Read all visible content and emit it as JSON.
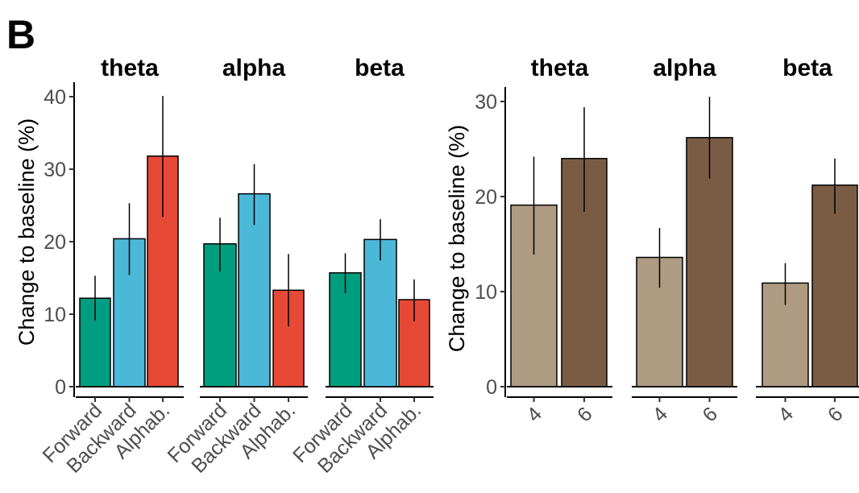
{
  "panel_label": "B",
  "chart_data": [
    {
      "type": "bar",
      "ylabel": "Change to baseline (%)",
      "ylim": [
        0,
        40
      ],
      "yticks": [
        0,
        10,
        20,
        30,
        40
      ],
      "categories": [
        "Forward",
        "Backward",
        "Alphab."
      ],
      "colors": [
        "#009E80",
        "#4CB8D8",
        "#E64A36"
      ],
      "facets": [
        {
          "title": "theta",
          "values": [
            12.2,
            20.4,
            31.8
          ],
          "error_low": [
            9.1,
            15.4,
            23.4
          ],
          "error_high": [
            15.3,
            25.3,
            40.1
          ]
        },
        {
          "title": "alpha",
          "values": [
            19.7,
            26.6,
            13.3
          ],
          "error_low": [
            15.9,
            22.3,
            8.3
          ],
          "error_high": [
            23.3,
            30.7,
            18.3
          ]
        },
        {
          "title": "beta",
          "values": [
            15.7,
            20.3,
            12.0
          ],
          "error_low": [
            12.9,
            17.4,
            9.0
          ],
          "error_high": [
            18.4,
            23.1,
            14.8
          ]
        }
      ],
      "grid": false,
      "legend": "none"
    },
    {
      "type": "bar",
      "ylabel": "Change to baseline (%)",
      "ylim": [
        0,
        30
      ],
      "yticks": [
        0,
        10,
        20,
        30
      ],
      "categories": [
        "4",
        "6"
      ],
      "colors": [
        "#AE9B82",
        "#7A5C45"
      ],
      "facets": [
        {
          "title": "theta",
          "values": [
            19.1,
            24.0
          ],
          "error_low": [
            13.9,
            18.4
          ],
          "error_high": [
            24.2,
            29.4
          ]
        },
        {
          "title": "alpha",
          "values": [
            13.6,
            26.2
          ],
          "error_low": [
            10.4,
            21.9
          ],
          "error_high": [
            16.7,
            30.5
          ]
        },
        {
          "title": "beta",
          "values": [
            10.9,
            21.2
          ],
          "error_low": [
            8.6,
            18.2
          ],
          "error_high": [
            13.0,
            24.0
          ]
        }
      ],
      "grid": false,
      "legend": "none"
    }
  ]
}
